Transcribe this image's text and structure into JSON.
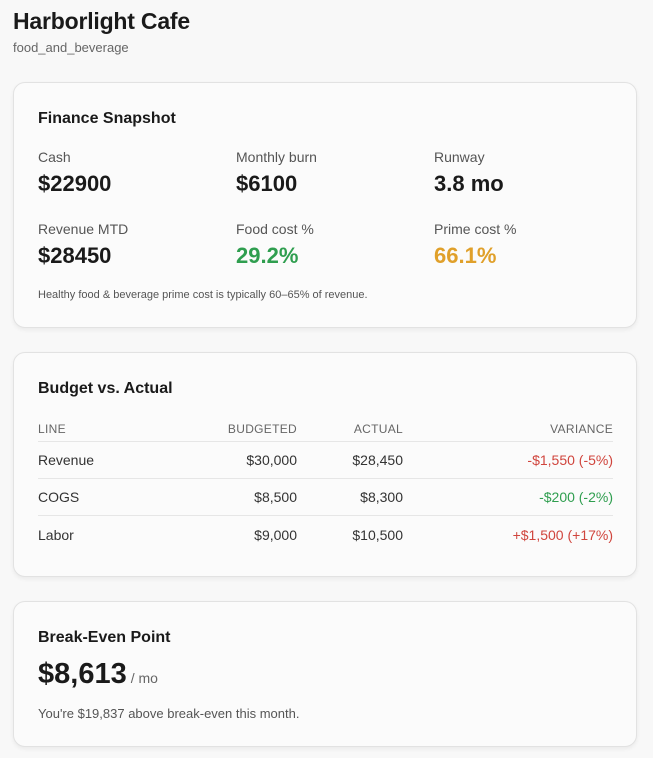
{
  "header": {
    "title": "Harborlight Cafe",
    "subtitle": "food_and_beverage"
  },
  "finance": {
    "title": "Finance Snapshot",
    "metrics": [
      {
        "label": "Cash",
        "value": "$22900"
      },
      {
        "label": "Monthly burn",
        "value": "$6100"
      },
      {
        "label": "Runway",
        "value": "3.8 mo"
      },
      {
        "label": "Revenue MTD",
        "value": "$28450"
      },
      {
        "label": "Food cost %",
        "value": "29.2%"
      },
      {
        "label": "Prime cost %",
        "value": "66.1%"
      }
    ],
    "note": "Healthy food & beverage prime cost is typically 60–65% of revenue.",
    "colors": {
      "good": "#2f9e4f",
      "warn": "#e0a02a"
    }
  },
  "budget": {
    "title": "Budget vs. Actual",
    "columns": [
      "LINE",
      "BUDGETED",
      "ACTUAL",
      "VARIANCE"
    ],
    "rows": [
      {
        "line": "Revenue",
        "budgeted": "$30,000",
        "actual": "$28,450",
        "variance": "-$1,550 (-5%)"
      },
      {
        "line": "COGS",
        "budgeted": "$8,500",
        "actual": "$8,300",
        "variance": "-$200 (-2%)"
      },
      {
        "line": "Labor",
        "budgeted": "$9,000",
        "actual": "$10,500",
        "variance": "+$1,500 (+17%)"
      }
    ],
    "colors": {
      "unfavorable": "#d0453d",
      "favorable": "#2f9e4f"
    }
  },
  "breakeven": {
    "title": "Break-Even Point",
    "value": "$8,613",
    "unit": "/ mo",
    "note": "You're $19,837 above break-even this month."
  }
}
